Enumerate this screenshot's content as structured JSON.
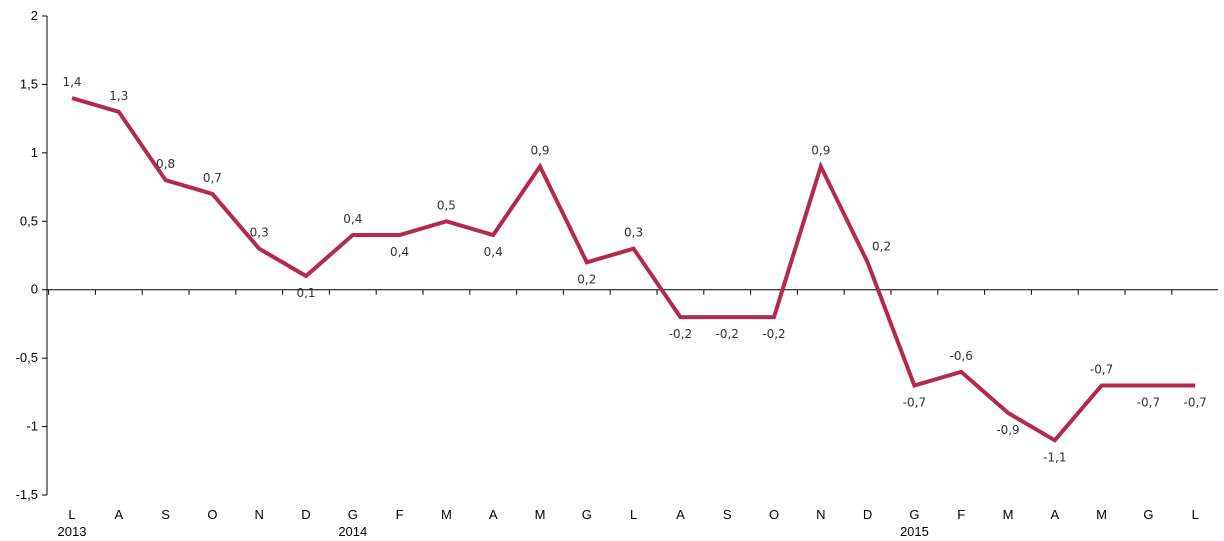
{
  "chart_data": {
    "type": "line",
    "categories": [
      "L",
      "A",
      "S",
      "O",
      "N",
      "D",
      "G",
      "F",
      "M",
      "A",
      "M",
      "G",
      "L",
      "A",
      "S",
      "O",
      "N",
      "D",
      "G",
      "F",
      "M",
      "A",
      "M",
      "G",
      "L"
    ],
    "years": [
      {
        "label": "2013",
        "index": 0
      },
      {
        "label": "2014",
        "index": 6
      },
      {
        "label": "2015",
        "index": 18
      }
    ],
    "series": [
      {
        "values": [
          1.4,
          1.3,
          0.8,
          0.7,
          0.3,
          0.1,
          0.4,
          0.4,
          0.5,
          0.4,
          0.9,
          0.2,
          0.3,
          -0.2,
          -0.2,
          -0.2,
          0.9,
          0.2,
          -0.7,
          -0.6,
          -0.9,
          -1.1,
          -0.7,
          -0.7,
          -0.7
        ],
        "labels": [
          "1,4",
          "1,3",
          "0,8",
          "0,7",
          "0,3",
          "0,1",
          "0,4",
          "0,4",
          "0,5",
          "0,4",
          "0,9",
          "0,2",
          "0,3",
          "-0,2",
          "-0,2",
          "-0,2",
          "0,9",
          "0,2",
          "-0,7",
          "-0,6",
          "-0,9",
          "-1,1",
          "-0,7",
          "-0,7",
          "-0,7"
        ],
        "color": "#B5294E"
      }
    ],
    "y_ticks": [
      {
        "value": 2,
        "label": "2"
      },
      {
        "value": 1.5,
        "label": "1,5"
      },
      {
        "value": 1,
        "label": "1"
      },
      {
        "value": 0.5,
        "label": "0,5"
      },
      {
        "value": 0,
        "label": "0"
      },
      {
        "value": -0.5,
        "label": "-0,5"
      },
      {
        "value": -1,
        "label": "-1"
      },
      {
        "value": -1.5,
        "label": "-1,5"
      }
    ],
    "ylim": [
      -1.5,
      2
    ],
    "grid": false,
    "title": "",
    "xlabel": "",
    "ylabel": ""
  }
}
